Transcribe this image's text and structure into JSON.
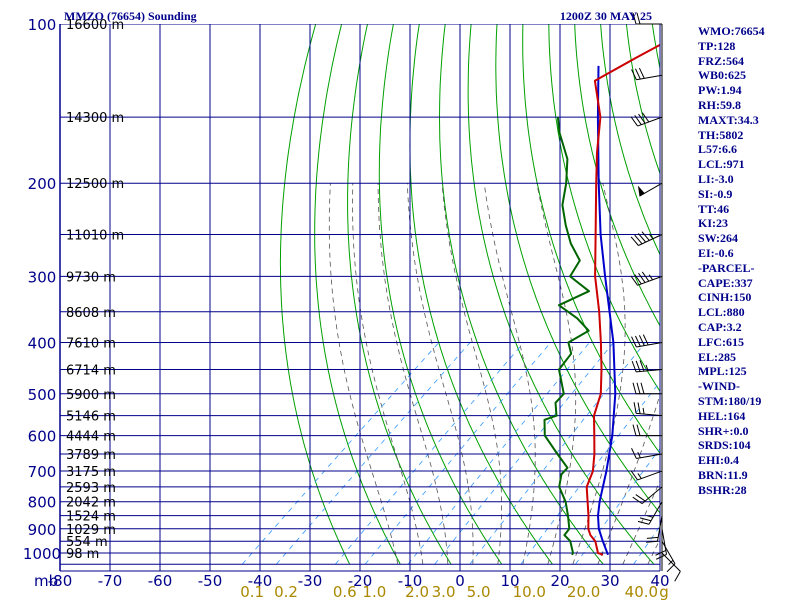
{
  "header": {
    "station": "MMZO (76654) Sounding",
    "time": "1200Z 30 MAY 25"
  },
  "indices": [
    "WMO:76654",
    "TP:128",
    "FRZ:564",
    "WB0:625",
    "PW:1.94",
    "RH:59.8",
    "MAXT:34.3",
    "TH:5802",
    "L57:6.6",
    "LCL:971",
    "LI:-3.0",
    "SI:-0.9",
    "TT:46",
    "KI:23",
    "SW:264",
    "EI:-0.6",
    "-PARCEL-",
    "CAPE:337",
    "CINH:150",
    "LCL:880",
    "CAP:3.2",
    "LFC:615",
    "EL:285",
    "MPL:125",
    "-WIND-",
    "STM:180/19",
    "HEL:164",
    "SHR+:0.0",
    "SRDS:104",
    "EHI:0.4",
    "BRN:11.9",
    "BSHR:28"
  ],
  "colors": {
    "grid": "#00008b",
    "isotherm": "#00008b",
    "dry_adiabat": "#00a000",
    "moist_adiabat": "#555555",
    "mixing_ratio": "#3399ff",
    "temperature": "#cc0000",
    "dewpoint": "#006400",
    "parcel": "#0000cc",
    "wind_barb": "#000000",
    "mixing_label": "#aa8800"
  },
  "chart_data": {
    "type": "skew-t",
    "pressure_axis": {
      "scale": "log",
      "range": [
        1000,
        100
      ],
      "labels": [
        "100",
        "200",
        "300",
        "400",
        "500",
        "600",
        "700",
        "800",
        "900",
        "1000"
      ],
      "unit_label": "mb"
    },
    "temperature_axis": {
      "range": [
        -80,
        40
      ],
      "tick_labels": [
        "-80",
        "-70",
        "-60",
        "-50",
        "-40",
        "-30",
        "-20",
        "-10",
        "0",
        "10",
        "20",
        "30",
        "40"
      ]
    },
    "mixing_ratio_axis": {
      "labels": [
        "0.1",
        "0.2",
        "0.6",
        "1.0",
        "2.0",
        "3.0",
        "5.0",
        "10.0",
        "20.0",
        "40.0"
      ],
      "unit_label": "g"
    },
    "height_labels": [
      {
        "p": 100,
        "text": "16600 m"
      },
      {
        "p": 150,
        "text": "14300 m"
      },
      {
        "p": 200,
        "text": "12500 m"
      },
      {
        "p": 250,
        "text": "11010 m"
      },
      {
        "p": 300,
        "text": "9730 m"
      },
      {
        "p": 350,
        "text": "8608 m"
      },
      {
        "p": 400,
        "text": "7610 m"
      },
      {
        "p": 450,
        "text": "6714 m"
      },
      {
        "p": 500,
        "text": "5900 m"
      },
      {
        "p": 550,
        "text": "5146 m"
      },
      {
        "p": 600,
        "text": "4444 m"
      },
      {
        "p": 650,
        "text": "3789 m"
      },
      {
        "p": 700,
        "text": "3175 m"
      },
      {
        "p": 750,
        "text": "2593 m"
      },
      {
        "p": 800,
        "text": "2042 m"
      },
      {
        "p": 850,
        "text": "1524 m"
      },
      {
        "p": 900,
        "text": "1029 m"
      },
      {
        "p": 950,
        "text": "554 m"
      },
      {
        "p": 1000,
        "text": "98 m"
      }
    ],
    "temperature_profile": [
      [
        1008,
        29
      ],
      [
        1000,
        27.6
      ],
      [
        950,
        24.5
      ],
      [
        925,
        22.2
      ],
      [
        900,
        20.4
      ],
      [
        850,
        17.6
      ],
      [
        800,
        14.4
      ],
      [
        750,
        11.0
      ],
      [
        700,
        8.8
      ],
      [
        650,
        5.4
      ],
      [
        600,
        1.4
      ],
      [
        550,
        -3.0
      ],
      [
        500,
        -6.4
      ],
      [
        450,
        -11.5
      ],
      [
        400,
        -17.5
      ],
      [
        350,
        -24.5
      ],
      [
        300,
        -33.0
      ],
      [
        250,
        -42.0
      ],
      [
        200,
        -53.0
      ],
      [
        175,
        -59.5
      ],
      [
        150,
        -66.5
      ],
      [
        128,
        -75.5
      ],
      [
        115,
        -72.0
      ],
      [
        100,
        -67.0
      ]
    ],
    "dewpoint_profile": [
      [
        1008,
        22.8
      ],
      [
        1000,
        22.6
      ],
      [
        950,
        19.5
      ],
      [
        925,
        17.0
      ],
      [
        900,
        16.6
      ],
      [
        850,
        13.5
      ],
      [
        800,
        10.0
      ],
      [
        750,
        5.5
      ],
      [
        710,
        3.2
      ],
      [
        690,
        3.0
      ],
      [
        650,
        -2.0
      ],
      [
        600,
        -8.5
      ],
      [
        560,
        -12.0
      ],
      [
        550,
        -10.5
      ],
      [
        520,
        -13.5
      ],
      [
        500,
        -13.8
      ],
      [
        450,
        -20.0
      ],
      [
        420,
        -21.0
      ],
      [
        400,
        -24.0
      ],
      [
        380,
        -22.5
      ],
      [
        360,
        -27.5
      ],
      [
        340,
        -34.0
      ],
      [
        320,
        -31.0
      ],
      [
        300,
        -38.0
      ],
      [
        280,
        -39.5
      ],
      [
        260,
        -45.0
      ],
      [
        240,
        -50.0
      ],
      [
        220,
        -55.0
      ],
      [
        200,
        -59.0
      ],
      [
        180,
        -64.0
      ],
      [
        160,
        -71.5
      ],
      [
        150,
        -75.0
      ]
    ],
    "parcel_profile": [
      [
        1008,
        30.0
      ],
      [
        950,
        26.0
      ],
      [
        900,
        22.5
      ],
      [
        850,
        19.5
      ],
      [
        800,
        16.8
      ],
      [
        700,
        11.5
      ],
      [
        600,
        5.0
      ],
      [
        500,
        -3.5
      ],
      [
        400,
        -15.0
      ],
      [
        300,
        -31.0
      ],
      [
        250,
        -41.0
      ],
      [
        200,
        -52.5
      ],
      [
        150,
        -67.0
      ],
      [
        120,
        -78.0
      ]
    ],
    "wind_barbs": [
      {
        "p": 1000,
        "dir": 135,
        "spd": 10
      },
      {
        "p": 950,
        "dir": 150,
        "spd": 15
      },
      {
        "p": 900,
        "dir": 170,
        "spd": 20
      },
      {
        "p": 850,
        "dir": 190,
        "spd": 20
      },
      {
        "p": 800,
        "dir": 210,
        "spd": 25
      },
      {
        "p": 750,
        "dir": 230,
        "spd": 20
      },
      {
        "p": 700,
        "dir": 250,
        "spd": 15
      },
      {
        "p": 650,
        "dir": 260,
        "spd": 15
      },
      {
        "p": 600,
        "dir": 270,
        "spd": 20
      },
      {
        "p": 550,
        "dir": 275,
        "spd": 25
      },
      {
        "p": 500,
        "dir": 270,
        "spd": 30
      },
      {
        "p": 450,
        "dir": 265,
        "spd": 35
      },
      {
        "p": 400,
        "dir": 260,
        "spd": 40
      },
      {
        "p": 300,
        "dir": 250,
        "spd": 45
      },
      {
        "p": 250,
        "dir": 245,
        "spd": 45
      },
      {
        "p": 200,
        "dir": 240,
        "spd": 50
      },
      {
        "p": 150,
        "dir": 250,
        "spd": 40
      },
      {
        "p": 125,
        "dir": 260,
        "spd": 30
      },
      {
        "p": 100,
        "dir": 270,
        "spd": 20
      }
    ]
  }
}
